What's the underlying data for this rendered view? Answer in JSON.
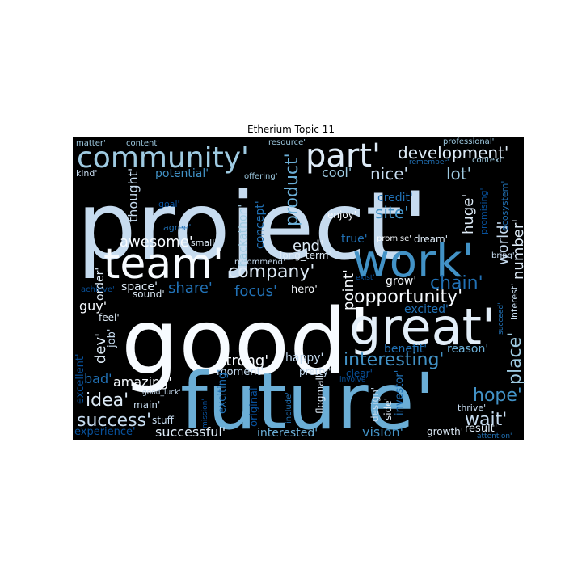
{
  "figure": {
    "title": "Etherium Topic 11"
  },
  "chart_data": {
    "type": "wordcloud",
    "title": "Etherium Topic 11",
    "background": "#000000",
    "colormap": "Blues",
    "words": [
      {
        "text": "project'",
        "weight": 1.0,
        "color": "#c6dbef"
      },
      {
        "text": "good'",
        "weight": 0.98,
        "color": "#f7fbff"
      },
      {
        "text": "future'",
        "weight": 0.9,
        "color": "#6baed6"
      },
      {
        "text": "great'",
        "weight": 0.55,
        "color": "#e3eef8"
      },
      {
        "text": "work'",
        "weight": 0.5,
        "color": "#4292c6"
      },
      {
        "text": "team'",
        "weight": 0.46,
        "color": "#f7fbff"
      },
      {
        "text": "part'",
        "weight": 0.36,
        "color": "#deebf7"
      },
      {
        "text": "community'",
        "weight": 0.35,
        "color": "#9ecae1"
      },
      {
        "text": "development'",
        "weight": 0.22,
        "color": "#deebf7"
      },
      {
        "text": "interesting'",
        "weight": 0.22,
        "color": "#4292c6"
      },
      {
        "text": "opportunity'",
        "weight": 0.22,
        "color": "#f7fbff"
      },
      {
        "text": "chain'",
        "weight": 0.22,
        "color": "#2171b5"
      },
      {
        "text": "company'",
        "weight": 0.22,
        "color": "#deebf7"
      },
      {
        "text": "product'",
        "weight": 0.2,
        "color": "#6baed6"
      },
      {
        "text": "place'",
        "weight": 0.2,
        "color": "#9ecae1"
      },
      {
        "text": "idea'",
        "weight": 0.2,
        "color": "#deebf7"
      },
      {
        "text": "success'",
        "weight": 0.2,
        "color": "#c6dbef"
      },
      {
        "text": "wait'",
        "weight": 0.2,
        "color": "#c6dbef"
      },
      {
        "text": "hope'",
        "weight": 0.2,
        "color": "#4292c6"
      },
      {
        "text": "nice'",
        "weight": 0.18,
        "color": "#c6dbef"
      },
      {
        "text": "lot'",
        "weight": 0.18,
        "color": "#9ecae1"
      },
      {
        "text": "site'",
        "weight": 0.18,
        "color": "#4292c6"
      },
      {
        "text": "awesome'",
        "weight": 0.17,
        "color": "#f7fbff"
      },
      {
        "text": "focus'",
        "weight": 0.17,
        "color": "#2171b5"
      },
      {
        "text": "share'",
        "weight": 0.17,
        "color": "#2171b5"
      },
      {
        "text": "end'",
        "weight": 0.17,
        "color": "#deebf7"
      },
      {
        "text": "point'",
        "weight": 0.17,
        "color": "#f7fbff"
      },
      {
        "text": "huge'",
        "weight": 0.17,
        "color": "#deebf7"
      },
      {
        "text": "world'",
        "weight": 0.17,
        "color": "#c6dbef"
      },
      {
        "text": "number'",
        "weight": 0.17,
        "color": "#deebf7"
      },
      {
        "text": "dev'",
        "weight": 0.17,
        "color": "#deebf7"
      },
      {
        "text": "strong'",
        "weight": 0.16,
        "color": "#f7fbff"
      },
      {
        "text": "successful'",
        "weight": 0.15,
        "color": "#deebf7"
      },
      {
        "text": "guy'",
        "weight": 0.15,
        "color": "#f7fbff"
      },
      {
        "text": "thought'",
        "weight": 0.14,
        "color": "#c6dbef"
      },
      {
        "text": "cool'",
        "weight": 0.14,
        "color": "#9ecae1"
      },
      {
        "text": "vision'",
        "weight": 0.14,
        "color": "#4292c6"
      },
      {
        "text": "amazing'",
        "weight": 0.13,
        "color": "#f7fbff"
      },
      {
        "text": "bad'",
        "weight": 0.13,
        "color": "#2171b5"
      },
      {
        "text": "interested'",
        "weight": 0.13,
        "color": "#6baed6"
      },
      {
        "text": "order'",
        "weight": 0.13,
        "color": "#deebf7"
      },
      {
        "text": "space'",
        "weight": 0.13,
        "color": "#deebf7"
      },
      {
        "text": "happy'",
        "weight": 0.12,
        "color": "#c6dbef"
      },
      {
        "text": "benefit'",
        "weight": 0.12,
        "color": "#2171b5"
      },
      {
        "text": "reason'",
        "weight": 0.12,
        "color": "#6baed6"
      },
      {
        "text": "excited'",
        "weight": 0.12,
        "color": "#2171b5"
      },
      {
        "text": "grow'",
        "weight": 0.12,
        "color": "#f7fbff"
      },
      {
        "text": "hackathon'",
        "weight": 0.12,
        "color": "#9ecae1"
      },
      {
        "text": "concept'",
        "weight": 0.12,
        "color": "#2171b5"
      },
      {
        "text": "credit'",
        "weight": 0.12,
        "color": "#2171b5"
      },
      {
        "text": "potential'",
        "weight": 0.12,
        "color": "#4292c6"
      },
      {
        "text": "true'",
        "weight": 0.12,
        "color": "#2171b5"
      },
      {
        "text": "moment'",
        "weight": 0.11,
        "color": "#c6dbef"
      },
      {
        "text": "exciting'",
        "weight": 0.11,
        "color": "#2171b5"
      },
      {
        "text": "original'",
        "weight": 0.11,
        "color": "#08519c"
      },
      {
        "text": "investor'",
        "weight": 0.11,
        "color": "#2171b5"
      },
      {
        "text": "excellent'",
        "weight": 0.11,
        "color": "#08519c"
      },
      {
        "text": "experience'",
        "weight": 0.11,
        "color": "#08519c"
      },
      {
        "text": "result'",
        "weight": 0.11,
        "color": "#deebf7"
      },
      {
        "text": "job'",
        "weight": 0.1,
        "color": "#c6dbef"
      },
      {
        "text": "hero'",
        "weight": 0.1,
        "color": "#f7fbff"
      },
      {
        "text": "long_term'",
        "weight": 0.1,
        "color": "#deebf7"
      },
      {
        "text": "main'",
        "weight": 0.1,
        "color": "#c6dbef"
      },
      {
        "text": "stuff'",
        "weight": 0.1,
        "color": "#c6dbef"
      },
      {
        "text": "dream'",
        "weight": 0.1,
        "color": "#deebf7"
      },
      {
        "text": "pretty'",
        "weight": 0.1,
        "color": "#c6dbef"
      },
      {
        "text": "design'",
        "weight": 0.1,
        "color": "#c6dbef"
      },
      {
        "text": "side'",
        "weight": 0.1,
        "color": "#deebf7"
      },
      {
        "text": "growth'",
        "weight": 0.09,
        "color": "#deebf7"
      },
      {
        "text": "enjoy'",
        "weight": 0.09,
        "color": "#f7fbff"
      },
      {
        "text": "feel'",
        "weight": 0.09,
        "color": "#deebf7"
      },
      {
        "text": "sound'",
        "weight": 0.09,
        "color": "#deebf7"
      },
      {
        "text": "small'",
        "weight": 0.09,
        "color": "#deebf7"
      },
      {
        "text": "agree'",
        "weight": 0.09,
        "color": "#2171b5"
      },
      {
        "text": "goal'",
        "weight": 0.09,
        "color": "#08519c"
      },
      {
        "text": "kind'",
        "weight": 0.09,
        "color": "#c6dbef"
      },
      {
        "text": "matter'",
        "weight": 0.09,
        "color": "#9ecae1"
      },
      {
        "text": "content'",
        "weight": 0.09,
        "color": "#9ecae1"
      },
      {
        "text": "resource'",
        "weight": 0.08,
        "color": "#9ecae1"
      },
      {
        "text": "offering'",
        "weight": 0.08,
        "color": "#9ecae1"
      },
      {
        "text": "professional'",
        "weight": 0.08,
        "color": "#9ecae1"
      },
      {
        "text": "context'",
        "weight": 0.08,
        "color": "#9ecae1"
      },
      {
        "text": "remember'",
        "weight": 0.07,
        "color": "#2171b5"
      },
      {
        "text": "promising'",
        "weight": 0.08,
        "color": "#08519c"
      },
      {
        "text": "ecosystem'",
        "weight": 0.08,
        "color": "#2171b5"
      },
      {
        "text": "recommend'",
        "weight": 0.08,
        "color": "#c6dbef"
      },
      {
        "text": "promise'",
        "weight": 0.08,
        "color": "#f7fbff"
      },
      {
        "text": "bring'",
        "weight": 0.08,
        "color": "#c6dbef"
      },
      {
        "text": "achieve'",
        "weight": 0.08,
        "color": "#08519c"
      },
      {
        "text": "exist'",
        "weight": 0.07,
        "color": "#08519c"
      },
      {
        "text": "involve'",
        "weight": 0.07,
        "color": "#08519c"
      },
      {
        "text": "interest'",
        "weight": 0.08,
        "color": "#c6dbef"
      },
      {
        "text": "succeed'",
        "weight": 0.07,
        "color": "#2171b5"
      },
      {
        "text": "clear'",
        "weight": 0.08,
        "color": "#08519c"
      },
      {
        "text": "good_luck'",
        "weight": 0.07,
        "color": "#c6dbef"
      },
      {
        "text": "flogmall'",
        "weight": 0.08,
        "color": "#deebf7"
      },
      {
        "text": "include'",
        "weight": 0.07,
        "color": "#2171b5"
      },
      {
        "text": "thrive'",
        "weight": 0.08,
        "color": "#c6dbef"
      },
      {
        "text": "attention'",
        "weight": 0.07,
        "color": "#2171b5"
      },
      {
        "text": "mission'",
        "weight": 0.07,
        "color": "#08519c"
      }
    ]
  }
}
